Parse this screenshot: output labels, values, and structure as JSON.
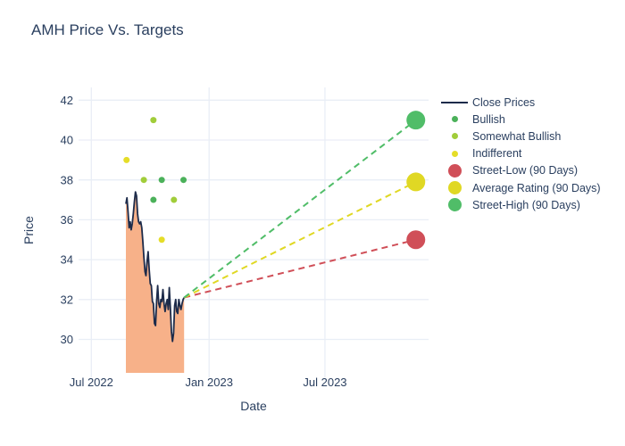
{
  "chart": {
    "title": "AMH Price Vs. Targets"
  },
  "chart_data": {
    "type": "line",
    "title": "AMH Price Vs. Targets",
    "xlabel": "Date",
    "ylabel": "Price",
    "x_tick_labels": [
      "Jul 2022",
      "Jan 2023",
      "Jul 2023"
    ],
    "x_tick_dates": [
      "2022-07-01",
      "2023-01-01",
      "2023-07-01"
    ],
    "y_ticks": [
      30,
      32,
      34,
      36,
      38,
      40,
      42
    ],
    "ylim": [
      28.3,
      42.7
    ],
    "grid": true,
    "legend_position": "right-outside",
    "close_prices": {
      "name": "Close Prices",
      "start_date": "2022-08-24",
      "end_date": "2022-11-23",
      "values": [
        36.8,
        37.1,
        36.4,
        35.6,
        35.9,
        35.5,
        35.8,
        36.3,
        36.9,
        37.4,
        37.2,
        36.3,
        35.9,
        35.8,
        35.9,
        35.6,
        34.9,
        34.1,
        33.4,
        33.2,
        33.9,
        34.4,
        33.5,
        32.8,
        32.7,
        31.9,
        31.8,
        30.8,
        30.7,
        31.9,
        32.7,
        31.8,
        31.6,
        32.0,
        31.9,
        32.5,
        31.8,
        31.4,
        31.8,
        32.0,
        31.5,
        32.6,
        31.6,
        30.4,
        29.9,
        30.3,
        31.7,
        32.0,
        31.4,
        31.3,
        32.0,
        31.7,
        31.5,
        31.8,
        32.0,
        32.1
      ]
    },
    "ratings": [
      {
        "date": "2022-08-25",
        "price": 39.0,
        "category": "indifferent"
      },
      {
        "date": "2022-09-21",
        "price": 38.0,
        "category": "somewhat_bullish"
      },
      {
        "date": "2022-10-06",
        "price": 41.0,
        "category": "somewhat_bullish"
      },
      {
        "date": "2022-10-06",
        "price": 37.0,
        "category": "bullish"
      },
      {
        "date": "2022-10-19",
        "price": 38.0,
        "category": "bullish"
      },
      {
        "date": "2022-10-19",
        "price": 35.0,
        "category": "indifferent"
      },
      {
        "date": "2022-11-07",
        "price": 37.0,
        "category": "somewhat_bullish"
      },
      {
        "date": "2022-11-22",
        "price": 38.0,
        "category": "bullish"
      }
    ],
    "targets": {
      "anchor": {
        "date": "2022-11-23",
        "price": 32.1
      },
      "end_date": "2023-11-20",
      "series": [
        {
          "key": "street_low",
          "label": "Street-Low (90 Days)",
          "value": 35.0
        },
        {
          "key": "average",
          "label": "Average Rating (90 Days)",
          "value": 37.9
        },
        {
          "key": "street_high",
          "label": "Street-High (90 Days)",
          "value": 41.0
        }
      ]
    },
    "colors": {
      "close_line": "#1d2b4a",
      "area_fill": "#f7b189",
      "bullish": "#4bb15a",
      "somewhat_bullish": "#a1cd3a",
      "indifferent": "#e5dd28",
      "street_low": "#d04f58",
      "average": "#e0d824",
      "street_high": "#50bd68",
      "grid": "#e9eef6",
      "text": "#2a3f5f",
      "background": "#ffffff"
    }
  },
  "legend": {
    "items": [
      {
        "label": "Close Prices",
        "symbol": "line",
        "color_key": "close_line"
      },
      {
        "label": "Bullish",
        "symbol": "dot-small",
        "color_key": "bullish"
      },
      {
        "label": "Somewhat Bullish",
        "symbol": "dot-small",
        "color_key": "somewhat_bullish"
      },
      {
        "label": "Indifferent",
        "symbol": "dot-small",
        "color_key": "indifferent"
      },
      {
        "label": "Street-Low (90 Days)",
        "symbol": "dot-big",
        "color_key": "street_low"
      },
      {
        "label": "Average Rating (90 Days)",
        "symbol": "dot-big",
        "color_key": "average"
      },
      {
        "label": "Street-High (90 Days)",
        "symbol": "dot-big",
        "color_key": "street_high"
      }
    ]
  },
  "axes": {
    "x_title": "Date",
    "y_title": "Price"
  }
}
